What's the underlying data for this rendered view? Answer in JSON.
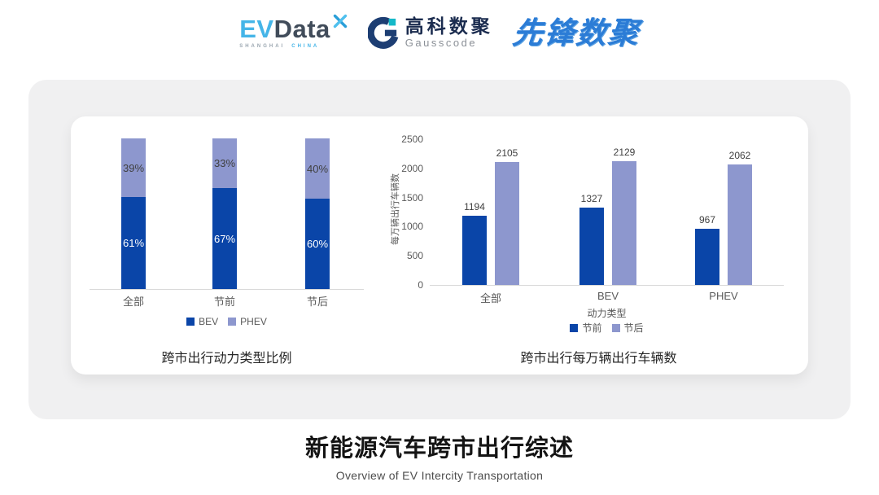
{
  "header": {
    "evdata_logo": {
      "ev": "EV",
      "data": "Data",
      "sub_left": "SHANGHAI",
      "sub_right": "CHINA"
    },
    "gausscode_logo": {
      "cn": "高科数聚",
      "en": "Gausscode"
    },
    "pioneer_logo": {
      "text": "先锋数聚"
    }
  },
  "colors": {
    "primary": "#0a45a8",
    "secondary": "#8d97ce",
    "axis_text": "#595959",
    "value_text": "#404040",
    "axis_line": "#d9d9d9"
  },
  "chart_data": [
    {
      "type": "bar",
      "subtype": "stacked-percent",
      "title": "跨市出行动力类型比例",
      "categories": [
        "全部",
        "节前",
        "节后"
      ],
      "series": [
        {
          "name": "BEV",
          "values": [
            61,
            67,
            60
          ]
        },
        {
          "name": "PHEV",
          "values": [
            39,
            33,
            40
          ]
        }
      ],
      "value_suffix": "%",
      "ylim": [
        0,
        100
      ],
      "grid": false,
      "legend_position": "bottom"
    },
    {
      "type": "bar",
      "subtype": "grouped",
      "title": "跨市出行每万辆出行车辆数",
      "xlabel": "动力类型",
      "ylabel": "每万辆出行车辆数",
      "categories": [
        "全部",
        "BEV",
        "PHEV"
      ],
      "series": [
        {
          "name": "节前",
          "values": [
            1194,
            1327,
            967
          ]
        },
        {
          "name": "节后",
          "values": [
            2105,
            2129,
            2062
          ]
        }
      ],
      "ylim": [
        0,
        2500
      ],
      "yticks": [
        0,
        500,
        1000,
        1500,
        2000,
        2500
      ],
      "grid": false,
      "legend_position": "bottom"
    }
  ],
  "footer": {
    "title": "新能源汽车跨市出行综述",
    "subtitle": "Overview of EV Intercity Transportation"
  }
}
